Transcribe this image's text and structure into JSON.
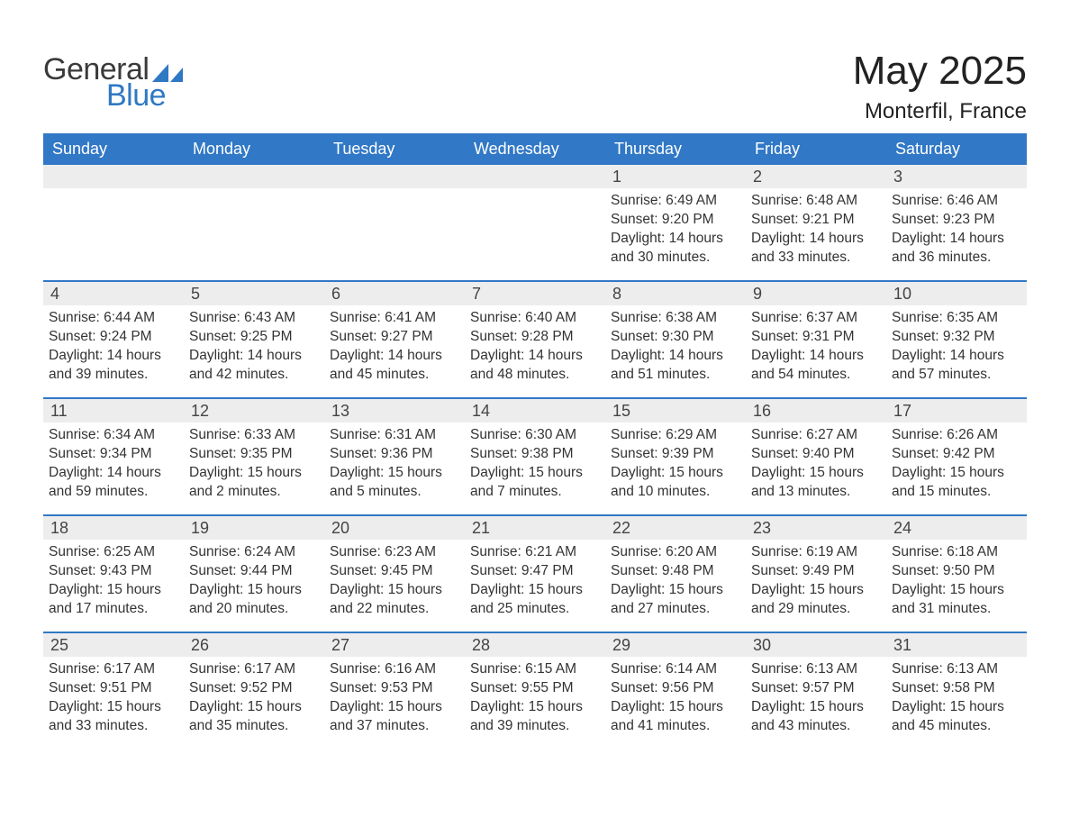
{
  "brand": {
    "word1": "General",
    "word2": "Blue",
    "accent_color": "#2f78c4",
    "text_color": "#3a3a3a"
  },
  "title": "May 2025",
  "location": "Monterfil, France",
  "header_bg": "#3178c6",
  "header_fg": "#ffffff",
  "daynum_bg": "#ededed",
  "body_color": "#333333",
  "week_border": "#3178c6",
  "days_of_week": [
    "Sunday",
    "Monday",
    "Tuesday",
    "Wednesday",
    "Thursday",
    "Friday",
    "Saturday"
  ],
  "weeks": [
    [
      {
        "n": "",
        "lines": [
          "",
          "",
          "",
          ""
        ]
      },
      {
        "n": "",
        "lines": [
          "",
          "",
          "",
          ""
        ]
      },
      {
        "n": "",
        "lines": [
          "",
          "",
          "",
          ""
        ]
      },
      {
        "n": "",
        "lines": [
          "",
          "",
          "",
          ""
        ]
      },
      {
        "n": "1",
        "lines": [
          "Sunrise: 6:49 AM",
          "Sunset: 9:20 PM",
          "Daylight: 14 hours",
          "and 30 minutes."
        ]
      },
      {
        "n": "2",
        "lines": [
          "Sunrise: 6:48 AM",
          "Sunset: 9:21 PM",
          "Daylight: 14 hours",
          "and 33 minutes."
        ]
      },
      {
        "n": "3",
        "lines": [
          "Sunrise: 6:46 AM",
          "Sunset: 9:23 PM",
          "Daylight: 14 hours",
          "and 36 minutes."
        ]
      }
    ],
    [
      {
        "n": "4",
        "lines": [
          "Sunrise: 6:44 AM",
          "Sunset: 9:24 PM",
          "Daylight: 14 hours",
          "and 39 minutes."
        ]
      },
      {
        "n": "5",
        "lines": [
          "Sunrise: 6:43 AM",
          "Sunset: 9:25 PM",
          "Daylight: 14 hours",
          "and 42 minutes."
        ]
      },
      {
        "n": "6",
        "lines": [
          "Sunrise: 6:41 AM",
          "Sunset: 9:27 PM",
          "Daylight: 14 hours",
          "and 45 minutes."
        ]
      },
      {
        "n": "7",
        "lines": [
          "Sunrise: 6:40 AM",
          "Sunset: 9:28 PM",
          "Daylight: 14 hours",
          "and 48 minutes."
        ]
      },
      {
        "n": "8",
        "lines": [
          "Sunrise: 6:38 AM",
          "Sunset: 9:30 PM",
          "Daylight: 14 hours",
          "and 51 minutes."
        ]
      },
      {
        "n": "9",
        "lines": [
          "Sunrise: 6:37 AM",
          "Sunset: 9:31 PM",
          "Daylight: 14 hours",
          "and 54 minutes."
        ]
      },
      {
        "n": "10",
        "lines": [
          "Sunrise: 6:35 AM",
          "Sunset: 9:32 PM",
          "Daylight: 14 hours",
          "and 57 minutes."
        ]
      }
    ],
    [
      {
        "n": "11",
        "lines": [
          "Sunrise: 6:34 AM",
          "Sunset: 9:34 PM",
          "Daylight: 14 hours",
          "and 59 minutes."
        ]
      },
      {
        "n": "12",
        "lines": [
          "Sunrise: 6:33 AM",
          "Sunset: 9:35 PM",
          "Daylight: 15 hours",
          "and 2 minutes."
        ]
      },
      {
        "n": "13",
        "lines": [
          "Sunrise: 6:31 AM",
          "Sunset: 9:36 PM",
          "Daylight: 15 hours",
          "and 5 minutes."
        ]
      },
      {
        "n": "14",
        "lines": [
          "Sunrise: 6:30 AM",
          "Sunset: 9:38 PM",
          "Daylight: 15 hours",
          "and 7 minutes."
        ]
      },
      {
        "n": "15",
        "lines": [
          "Sunrise: 6:29 AM",
          "Sunset: 9:39 PM",
          "Daylight: 15 hours",
          "and 10 minutes."
        ]
      },
      {
        "n": "16",
        "lines": [
          "Sunrise: 6:27 AM",
          "Sunset: 9:40 PM",
          "Daylight: 15 hours",
          "and 13 minutes."
        ]
      },
      {
        "n": "17",
        "lines": [
          "Sunrise: 6:26 AM",
          "Sunset: 9:42 PM",
          "Daylight: 15 hours",
          "and 15 minutes."
        ]
      }
    ],
    [
      {
        "n": "18",
        "lines": [
          "Sunrise: 6:25 AM",
          "Sunset: 9:43 PM",
          "Daylight: 15 hours",
          "and 17 minutes."
        ]
      },
      {
        "n": "19",
        "lines": [
          "Sunrise: 6:24 AM",
          "Sunset: 9:44 PM",
          "Daylight: 15 hours",
          "and 20 minutes."
        ]
      },
      {
        "n": "20",
        "lines": [
          "Sunrise: 6:23 AM",
          "Sunset: 9:45 PM",
          "Daylight: 15 hours",
          "and 22 minutes."
        ]
      },
      {
        "n": "21",
        "lines": [
          "Sunrise: 6:21 AM",
          "Sunset: 9:47 PM",
          "Daylight: 15 hours",
          "and 25 minutes."
        ]
      },
      {
        "n": "22",
        "lines": [
          "Sunrise: 6:20 AM",
          "Sunset: 9:48 PM",
          "Daylight: 15 hours",
          "and 27 minutes."
        ]
      },
      {
        "n": "23",
        "lines": [
          "Sunrise: 6:19 AM",
          "Sunset: 9:49 PM",
          "Daylight: 15 hours",
          "and 29 minutes."
        ]
      },
      {
        "n": "24",
        "lines": [
          "Sunrise: 6:18 AM",
          "Sunset: 9:50 PM",
          "Daylight: 15 hours",
          "and 31 minutes."
        ]
      }
    ],
    [
      {
        "n": "25",
        "lines": [
          "Sunrise: 6:17 AM",
          "Sunset: 9:51 PM",
          "Daylight: 15 hours",
          "and 33 minutes."
        ]
      },
      {
        "n": "26",
        "lines": [
          "Sunrise: 6:17 AM",
          "Sunset: 9:52 PM",
          "Daylight: 15 hours",
          "and 35 minutes."
        ]
      },
      {
        "n": "27",
        "lines": [
          "Sunrise: 6:16 AM",
          "Sunset: 9:53 PM",
          "Daylight: 15 hours",
          "and 37 minutes."
        ]
      },
      {
        "n": "28",
        "lines": [
          "Sunrise: 6:15 AM",
          "Sunset: 9:55 PM",
          "Daylight: 15 hours",
          "and 39 minutes."
        ]
      },
      {
        "n": "29",
        "lines": [
          "Sunrise: 6:14 AM",
          "Sunset: 9:56 PM",
          "Daylight: 15 hours",
          "and 41 minutes."
        ]
      },
      {
        "n": "30",
        "lines": [
          "Sunrise: 6:13 AM",
          "Sunset: 9:57 PM",
          "Daylight: 15 hours",
          "and 43 minutes."
        ]
      },
      {
        "n": "31",
        "lines": [
          "Sunrise: 6:13 AM",
          "Sunset: 9:58 PM",
          "Daylight: 15 hours",
          "and 45 minutes."
        ]
      }
    ]
  ]
}
